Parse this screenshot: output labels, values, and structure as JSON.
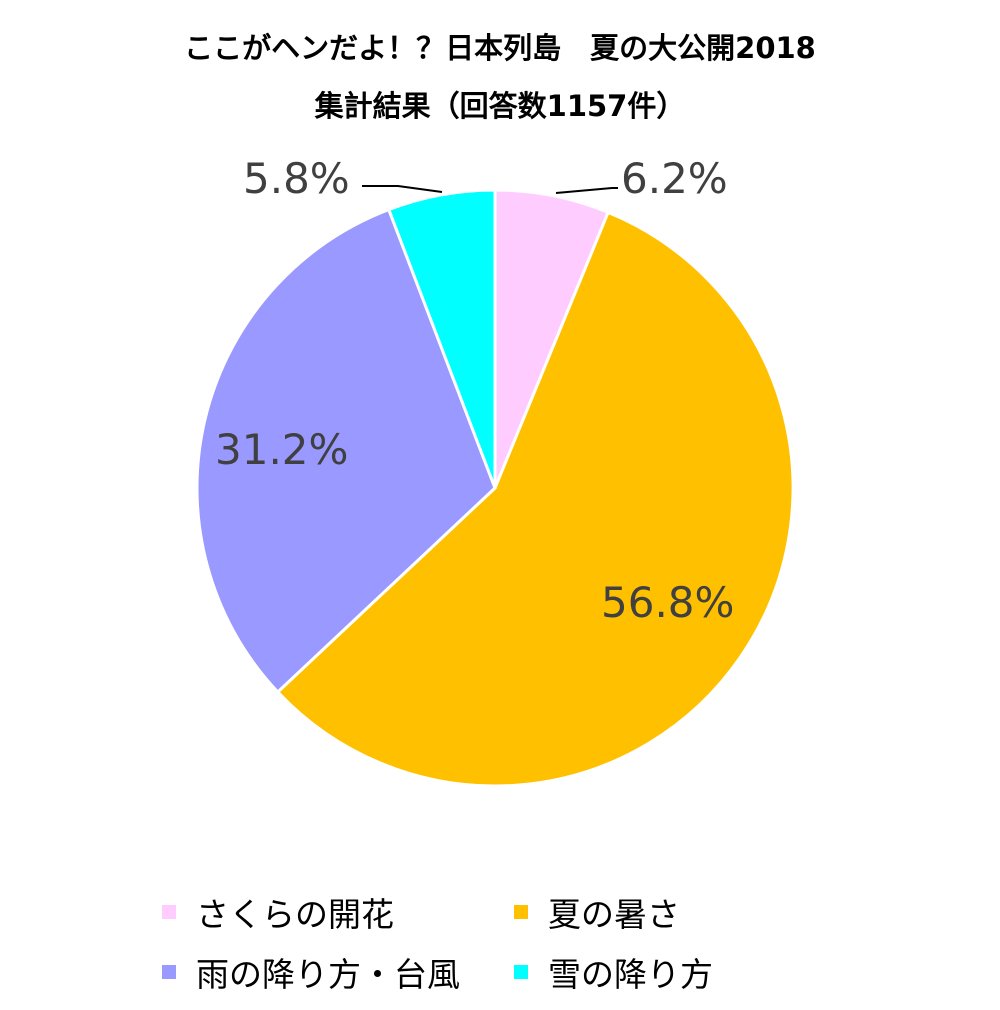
{
  "title": {
    "line1": "ここがヘンだよ！？日本列島　夏の大公開2018",
    "line2": "集計結果（回答数1157件）"
  },
  "chart_data": {
    "type": "pie",
    "title": "ここがヘンだよ！？日本列島　夏の大公開2018 集計結果（回答数1157件）",
    "categories": [
      "さくらの開花",
      "夏の暑さ",
      "雨の降り方・台風",
      "雪の降り方"
    ],
    "values": [
      6.2,
      56.8,
      31.2,
      5.8
    ],
    "labels": [
      "6.2%",
      "56.8%",
      "31.2%",
      "5.8%"
    ],
    "colors": [
      "#FFCCFF",
      "#FFC000",
      "#9999FF",
      "#00FFFF"
    ],
    "start_angle": "12 o'clock, clockwise",
    "legend_position": "bottom",
    "total_responses": 1157
  },
  "legend": {
    "items": [
      {
        "label": "さくらの開花",
        "color": "#FFCCFF"
      },
      {
        "label": "夏の暑さ",
        "color": "#FFC000"
      },
      {
        "label": "雨の降り方・台風",
        "color": "#9999FF"
      },
      {
        "label": "雪の降り方",
        "color": "#00FFFF"
      }
    ]
  }
}
